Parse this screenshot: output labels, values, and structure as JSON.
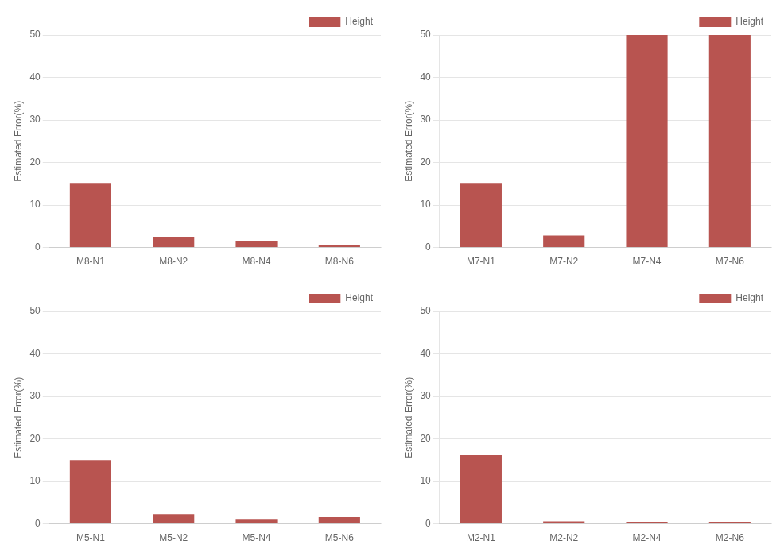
{
  "chart_data": [
    {
      "type": "bar",
      "categories": [
        "M8-N1",
        "M8-N2",
        "M8-N4",
        "M8-N6"
      ],
      "series": [
        {
          "name": "Height",
          "color": "#b85450",
          "values": [
            15.0,
            2.5,
            1.5,
            0.5
          ]
        }
      ],
      "ylabel": "Estimated Error(%)",
      "ylim": [
        0,
        50
      ],
      "yticks": [
        0,
        10,
        20,
        30,
        40,
        50
      ],
      "grid": true,
      "legend": "upper right"
    },
    {
      "type": "bar",
      "categories": [
        "M7-N1",
        "M7-N2",
        "M7-N4",
        "M7-N6"
      ],
      "series": [
        {
          "name": "Height",
          "color": "#b85450",
          "values": [
            15.0,
            2.8,
            50.0,
            50.0
          ]
        }
      ],
      "ylabel": "Estimated Error(%)",
      "ylim": [
        0,
        50
      ],
      "yticks": [
        0,
        10,
        20,
        30,
        40,
        50
      ],
      "grid": true,
      "legend": "upper right"
    },
    {
      "type": "bar",
      "categories": [
        "M5-N1",
        "M5-N2",
        "M5-N4",
        "M5-N6"
      ],
      "series": [
        {
          "name": "Height",
          "color": "#b85450",
          "values": [
            15.0,
            2.3,
            1.0,
            1.6
          ]
        }
      ],
      "ylabel": "Estimated Error(%)",
      "ylim": [
        0,
        50
      ],
      "yticks": [
        0,
        10,
        20,
        30,
        40,
        50
      ],
      "grid": true,
      "legend": "upper right"
    },
    {
      "type": "bar",
      "categories": [
        "M2-N1",
        "M2-N2",
        "M2-N4",
        "M2-N6"
      ],
      "series": [
        {
          "name": "Height",
          "color": "#b85450",
          "values": [
            16.2,
            0.6,
            0.5,
            0.5
          ]
        }
      ],
      "ylabel": "Estimated Error(%)",
      "ylim": [
        0,
        50
      ],
      "yticks": [
        0,
        10,
        20,
        30,
        40,
        50
      ],
      "grid": true,
      "legend": "upper right"
    }
  ]
}
